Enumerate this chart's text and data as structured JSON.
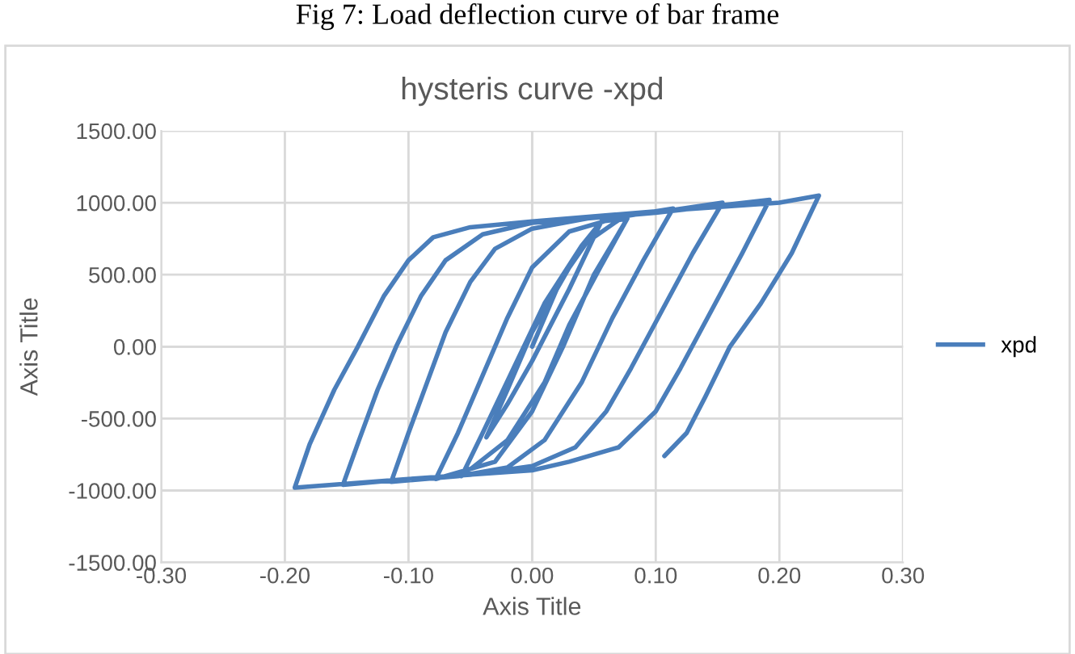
{
  "chart_data": {
    "type": "line",
    "title": "hysteris curve -xpd",
    "xlabel": "Axis Title",
    "ylabel": "Axis Title",
    "annotations": [
      "Fig 7: Load deflection curve of bar frame"
    ],
    "xlim": [
      -0.3,
      0.3
    ],
    "ylim": [
      -1500,
      1500
    ],
    "xticks": [
      {
        "value": -0.3,
        "label": "-0.30"
      },
      {
        "value": -0.2,
        "label": "-0.20"
      },
      {
        "value": -0.1,
        "label": "-0.10"
      },
      {
        "value": 0,
        "label": "0.00"
      },
      {
        "value": 0.1,
        "label": "0.10"
      },
      {
        "value": 0.2,
        "label": "0.20"
      },
      {
        "value": 0.3,
        "label": "0.30"
      }
    ],
    "yticks": [
      {
        "value": -1500,
        "label": "-1500.00"
      },
      {
        "value": -1000,
        "label": "-1000.00"
      },
      {
        "value": -500,
        "label": "-500.00"
      },
      {
        "value": 0,
        "label": "0.00"
      },
      {
        "value": 500,
        "label": "500.00"
      },
      {
        "value": 1000,
        "label": "1000.00"
      },
      {
        "value": 1500,
        "label": "1500.00"
      }
    ],
    "grid": true,
    "legend": "right",
    "marker": "none",
    "line_style": "solid",
    "series": [
      {
        "name": "xpd",
        "color": "#4a7ebb",
        "x": [
          0,
          0.02,
          0.04,
          0.056,
          0.03,
          0.0,
          -0.02,
          -0.037,
          -0.02,
          0.0,
          0.03,
          0.056,
          0.077,
          0.055,
          0.03,
          0.01,
          -0.02,
          -0.057,
          -0.04,
          -0.015,
          0.01,
          0.04,
          0.07,
          0.077,
          0.05,
          0.025,
          0.0,
          -0.03,
          -0.078,
          -0.06,
          -0.04,
          -0.02,
          0.0,
          0.03,
          0.07,
          0.114,
          0.09,
          0.065,
          0.04,
          0.01,
          -0.02,
          -0.06,
          -0.114,
          -0.1,
          -0.085,
          -0.07,
          -0.05,
          -0.03,
          0.0,
          0.05,
          0.114,
          0.154,
          0.13,
          0.105,
          0.08,
          0.06,
          0.035,
          0.0,
          -0.05,
          -0.1,
          -0.153,
          -0.14,
          -0.125,
          -0.11,
          -0.09,
          -0.07,
          -0.04,
          0.0,
          0.1,
          0.192,
          0.17,
          0.145,
          0.12,
          0.1,
          0.07,
          0.03,
          0.0,
          -0.1,
          -0.192,
          -0.18,
          -0.16,
          -0.141,
          -0.12,
          -0.1,
          -0.08,
          -0.05,
          0.0,
          0.1,
          0.2,
          0.232,
          0.21,
          0.185,
          0.16,
          0.14,
          0.125,
          0.107
        ],
        "values": [
          0,
          400,
          700,
          870,
          400,
          -100,
          -400,
          -630,
          -300,
          100,
          550,
          870,
          890,
          550,
          150,
          -250,
          -650,
          -900,
          -600,
          -150,
          300,
          700,
          880,
          890,
          500,
          0,
          -450,
          -800,
          -920,
          -600,
          -200,
          200,
          550,
          800,
          900,
          960,
          600,
          200,
          -250,
          -650,
          -840,
          -900,
          -940,
          -600,
          -250,
          100,
          450,
          680,
          820,
          900,
          950,
          1000,
          650,
          250,
          -150,
          -450,
          -700,
          -830,
          -890,
          -920,
          -960,
          -650,
          -300,
          0,
          350,
          600,
          780,
          860,
          930,
          1020,
          650,
          250,
          -150,
          -450,
          -700,
          -800,
          -860,
          -920,
          -980,
          -680,
          -300,
          0,
          350,
          600,
          760,
          830,
          870,
          940,
          1000,
          1050,
          650,
          300,
          0,
          -350,
          -600,
          -760
        ]
      }
    ]
  }
}
